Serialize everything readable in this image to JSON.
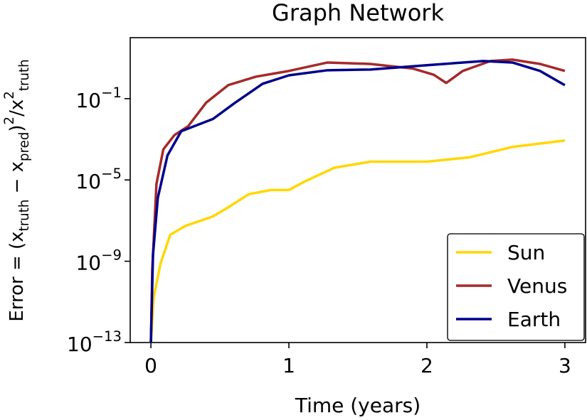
{
  "chart_data": {
    "type": "line",
    "title": "Graph Network",
    "xlabel": "Time (years)",
    "ylabel": "Error = (x_{truth} − x_{pred})^{2}/x^{2}_{truth}",
    "yscale": "log",
    "xlim": [
      -0.15,
      3.15
    ],
    "xticks": [
      0,
      1,
      2,
      3
    ],
    "ylim": [
      1e-13,
      100
    ],
    "yticks": [
      {
        "value": 1e-13,
        "label": "10^{−13}"
      },
      {
        "value": 1e-09,
        "label": "10^{−9}"
      },
      {
        "value": 1e-05,
        "label": "10^{−5}"
      },
      {
        "value": 0.1,
        "label": "10^{−1}"
      }
    ],
    "legend": "lower right",
    "series": [
      {
        "name": "Sun",
        "color": "#ffd700",
        "x": [
          0,
          0.02,
          0.07,
          0.14,
          0.25,
          0.45,
          0.56,
          0.71,
          0.87,
          1.0,
          1.12,
          1.33,
          1.59,
          2.0,
          2.31,
          2.62,
          3.0
        ],
        "values": [
          1e-13,
          1.6e-11,
          7.9e-10,
          2e-08,
          5.5e-08,
          1.6e-07,
          4.5e-07,
          2e-06,
          3.2e-06,
          3.2e-06,
          8.7e-06,
          4e-05,
          7.9e-05,
          7.9e-05,
          0.00013,
          0.00042,
          0.00087
        ]
      },
      {
        "name": "Venus",
        "color": "#a52a2a",
        "x": [
          0,
          0.01,
          0.04,
          0.09,
          0.17,
          0.27,
          0.4,
          0.56,
          0.76,
          1.0,
          1.28,
          1.59,
          1.9,
          2.05,
          2.14,
          2.26,
          2.46,
          2.62,
          2.82,
          3.0
        ],
        "values": [
          1e-13,
          4e-10,
          6.3e-06,
          0.00032,
          0.0016,
          0.0044,
          0.063,
          0.46,
          1.2,
          2.3,
          6,
          5.1,
          3,
          1.5,
          0.59,
          2.3,
          7.1,
          8.3,
          5.1,
          2.3
        ]
      },
      {
        "name": "Earth",
        "color": "#00008b",
        "x": [
          0,
          0.015,
          0.05,
          0.12,
          0.22,
          0.45,
          0.61,
          0.81,
          1.0,
          1.28,
          1.59,
          2.0,
          2.41,
          2.62,
          2.82,
          3.0
        ],
        "values": [
          1e-13,
          2e-09,
          1.3e-06,
          0.00016,
          0.0025,
          0.01,
          0.063,
          0.54,
          1.4,
          2.5,
          2.7,
          4.4,
          7.1,
          6,
          2.3,
          0.46
        ]
      }
    ]
  }
}
